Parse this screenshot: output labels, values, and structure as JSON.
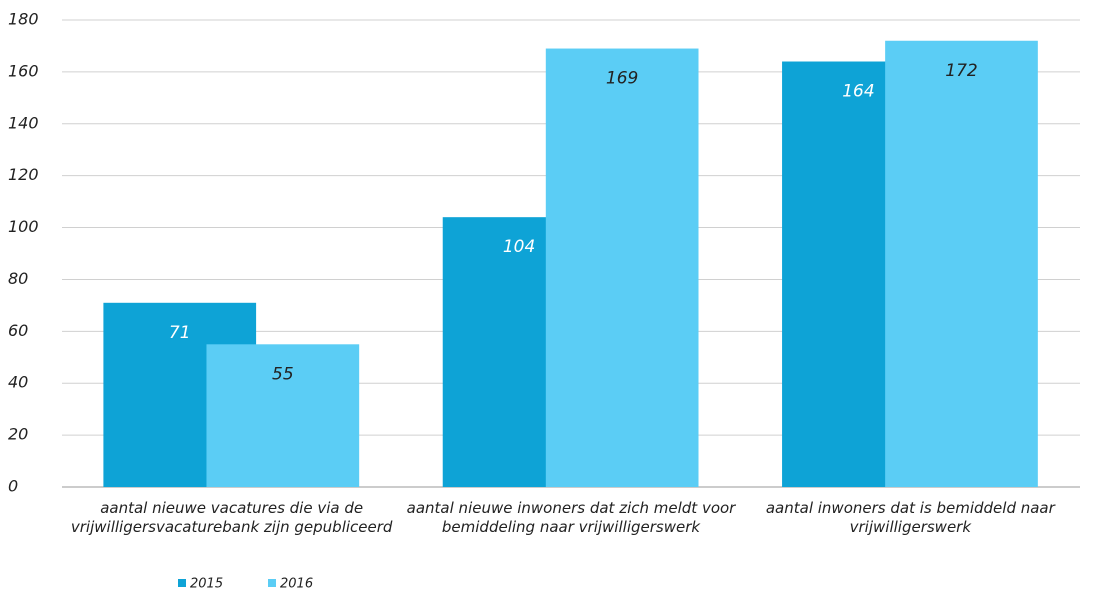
{
  "chart_data": {
    "type": "bar",
    "categories": [
      "aantal nieuwe vacatures die via de vrijwilligersvacaturebank zijn gepubliceerd",
      "aantal nieuwe inwoners dat zich meldt voor bemiddeling naar vrijwilligerswerk",
      "aantal inwoners dat is bemiddeld naar vrijwilligerswerk"
    ],
    "series": [
      {
        "name": "2015",
        "color": "#0ea3d6",
        "values": [
          71,
          104,
          164
        ]
      },
      {
        "name": "2016",
        "color": "#5bcdf5",
        "values": [
          55,
          169,
          172
        ]
      }
    ],
    "ylim": [
      0,
      180
    ],
    "yticks": [
      0,
      20,
      40,
      60,
      80,
      100,
      120,
      140,
      160,
      180
    ],
    "grid": true,
    "legend": "bottom-left"
  }
}
